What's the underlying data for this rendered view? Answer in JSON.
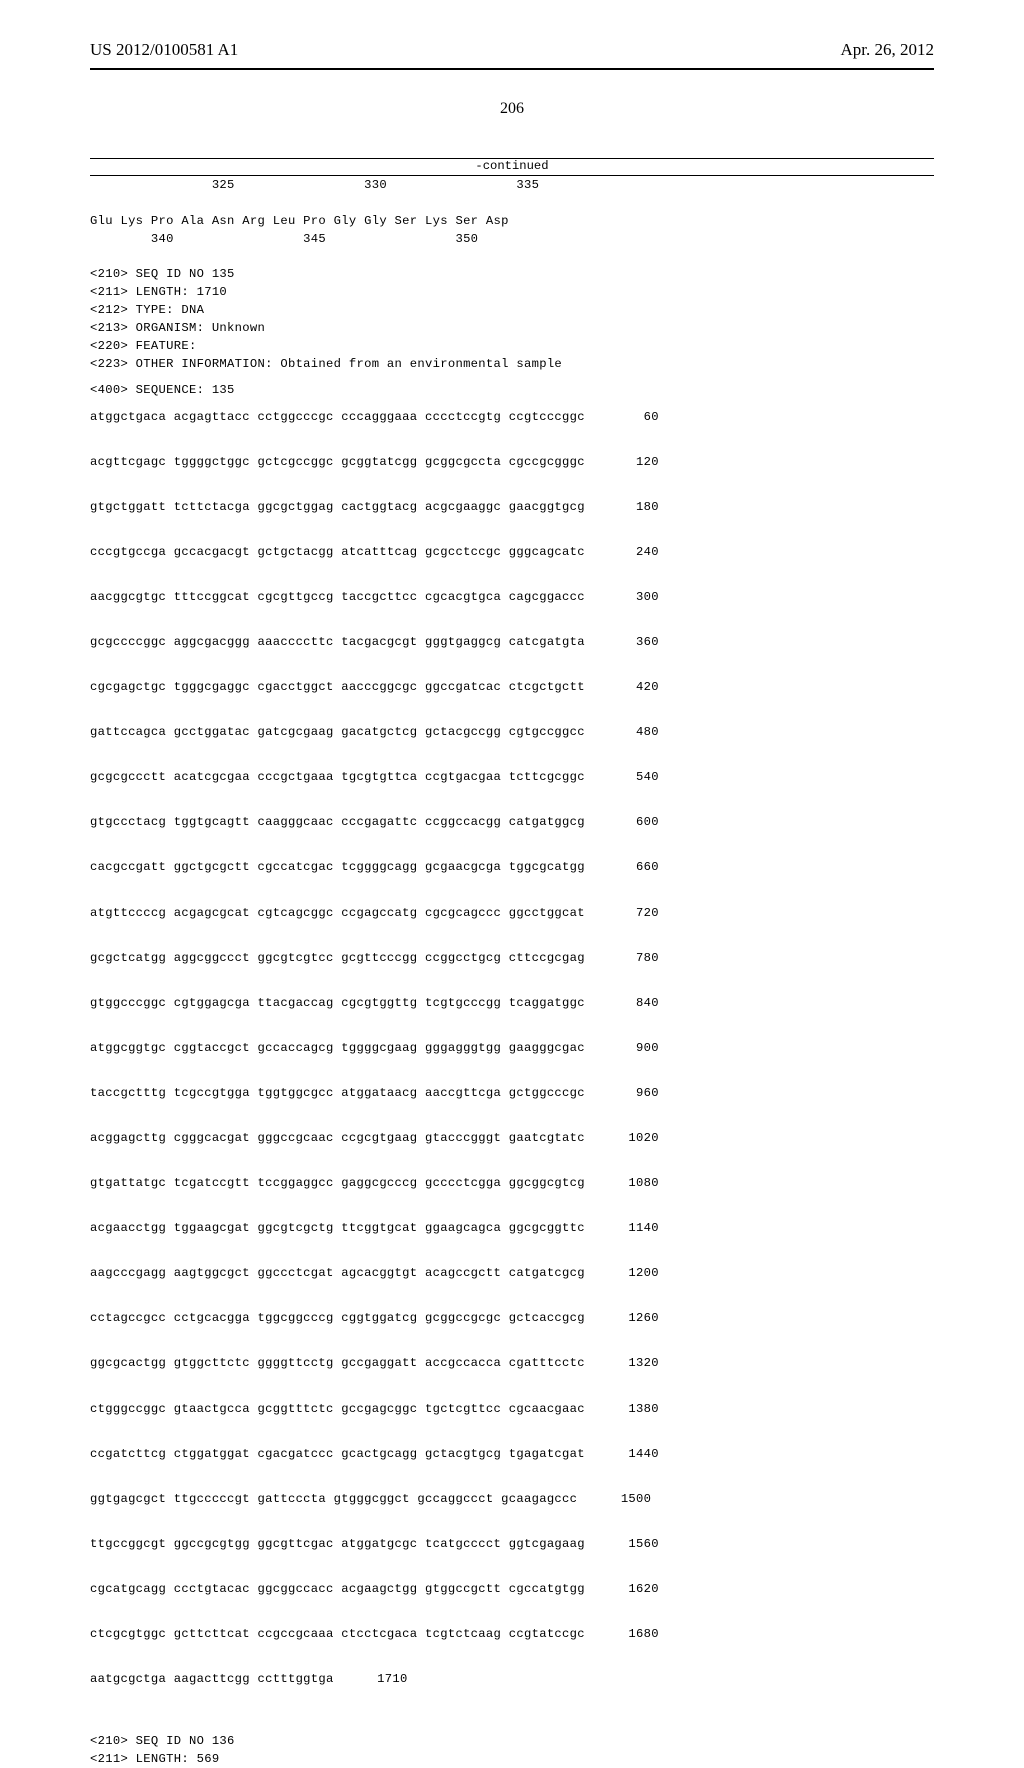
{
  "header": {
    "left": "US 2012/0100581 A1",
    "right": "Apr. 26, 2012"
  },
  "page_number": "206",
  "continued_label": "-continued",
  "protein_tail": {
    "line1_nums": "                325                 330                 335",
    "line2_seq": "Glu Lys Pro Ala Asn Arg Leu Pro Gly Gly Ser Lys Ser Asp",
    "line2_nums": "        340                 345                 350"
  },
  "seq135_meta": [
    "<210> SEQ ID NO 135",
    "<211> LENGTH: 1710",
    "<212> TYPE: DNA",
    "<213> ORGANISM: Unknown",
    "<220> FEATURE:",
    "<223> OTHER INFORMATION: Obtained from an environmental sample"
  ],
  "seq135_label": "<400> SEQUENCE: 135",
  "seq135_lines": [
    {
      "s": "atggctgaca acgagttacc cctggcccgc cccagggaaa cccctccgtg ccgtcccggc",
      "n": "60"
    },
    {
      "s": "acgttcgagc tggggctggc gctcgccggc gcggtatcgg gcggcgccta cgccgcgggc",
      "n": "120"
    },
    {
      "s": "gtgctggatt tcttctacga ggcgctggag cactggtacg acgcgaaggc gaacggtgcg",
      "n": "180"
    },
    {
      "s": "cccgtgccga gccacgacgt gctgctacgg atcatttcag gcgcctccgc gggcagcatc",
      "n": "240"
    },
    {
      "s": "aacggcgtgc tttccggcat cgcgttgccg taccgcttcc cgcacgtgca cagcggaccc",
      "n": "300"
    },
    {
      "s": "gcgccccggc aggcgacggg aaaccccttc tacgacgcgt gggtgaggcg catcgatgta",
      "n": "360"
    },
    {
      "s": "cgcgagctgc tgggcgaggc cgacctggct aacccggcgc ggccgatcac ctcgctgctt",
      "n": "420"
    },
    {
      "s": "gattccagca gcctggatac gatcgcgaag gacatgctcg gctacgccgg cgtgccggcc",
      "n": "480"
    },
    {
      "s": "gcgcgccctt acatcgcgaa cccgctgaaa tgcgtgttca ccgtgacgaa tcttcgcggc",
      "n": "540"
    },
    {
      "s": "gtgccctacg tggtgcagtt caagggcaac cccgagattc ccggccacgg catgatggcg",
      "n": "600"
    },
    {
      "s": "cacgccgatt ggctgcgctt cgccatcgac tcggggcagg gcgaacgcga tggcgcatgg",
      "n": "660"
    },
    {
      "s": "atgttccccg acgagcgcat cgtcagcggc ccgagccatg cgcgcagccc ggcctggcat",
      "n": "720"
    },
    {
      "s": "gcgctcatgg aggcggccct ggcgtcgtcc gcgttcccgg ccggcctgcg cttccgcgag",
      "n": "780"
    },
    {
      "s": "gtggcccggc cgtggagcga ttacgaccag cgcgtggttg tcgtgcccgg tcaggatggc",
      "n": "840"
    },
    {
      "s": "atggcggtgc cggtaccgct gccaccagcg tggggcgaag gggagggtgg gaagggcgac",
      "n": "900"
    },
    {
      "s": "taccgctttg tcgccgtgga tggtggcgcc atggataacg aaccgttcga gctggcccgc",
      "n": "960"
    },
    {
      "s": "acggagcttg cgggcacgat gggccgcaac ccgcgtgaag gtacccgggt gaatcgtatc",
      "n": "1020"
    },
    {
      "s": "gtgattatgc tcgatccgtt tccggaggcc gaggcgcccg gcccctcgga ggcggcgtcg",
      "n": "1080"
    },
    {
      "s": "acgaacctgg tggaagcgat ggcgtcgctg ttcggtgcat ggaagcagca ggcgcggttc",
      "n": "1140"
    },
    {
      "s": "aagcccgagg aagtggcgct ggccctcgat agcacggtgt acagccgctt catgatcgcg",
      "n": "1200"
    },
    {
      "s": "cctagccgcc cctgcacgga tggcggcccg cggtggatcg gcggccgcgc gctcaccgcg",
      "n": "1260"
    },
    {
      "s": "ggcgcactgg gtggcttctc ggggttcctg gccgaggatt accgccacca cgatttcctc",
      "n": "1320"
    },
    {
      "s": "ctgggccggc gtaactgcca gcggtttctc gccgagcggc tgctcgttcc cgcaacgaac",
      "n": "1380"
    },
    {
      "s": "ccgatcttcg ctggatggat cgacgatccc gcactgcagg gctacgtgcg tgagatcgat",
      "n": "1440"
    },
    {
      "s": "ggtgagcgct ttgcccccgt gattcccta gtgggcggct gccaggccct gcaagagccc",
      "n": "1500"
    },
    {
      "s": "ttgccggcgt ggccgcgtgg ggcgttcgac atggatgcgc tcatgcccct ggtcgagaag",
      "n": "1560"
    },
    {
      "s": "cgcatgcagg ccctgtacac ggcggccacc acgaagctgg gtggccgctt cgccatgtgg",
      "n": "1620"
    },
    {
      "s": "ctcgcgtggc gcttcttcat ccgccgcaaa ctcctcgaca tcgtctcaag ccgtatccgc",
      "n": "1680"
    },
    {
      "s": "aatgcgctga aagacttcgg cctttggtga",
      "n": "1710"
    }
  ],
  "seq136_meta": [
    "<210> SEQ ID NO 136",
    "<211> LENGTH: 569"
  ]
}
